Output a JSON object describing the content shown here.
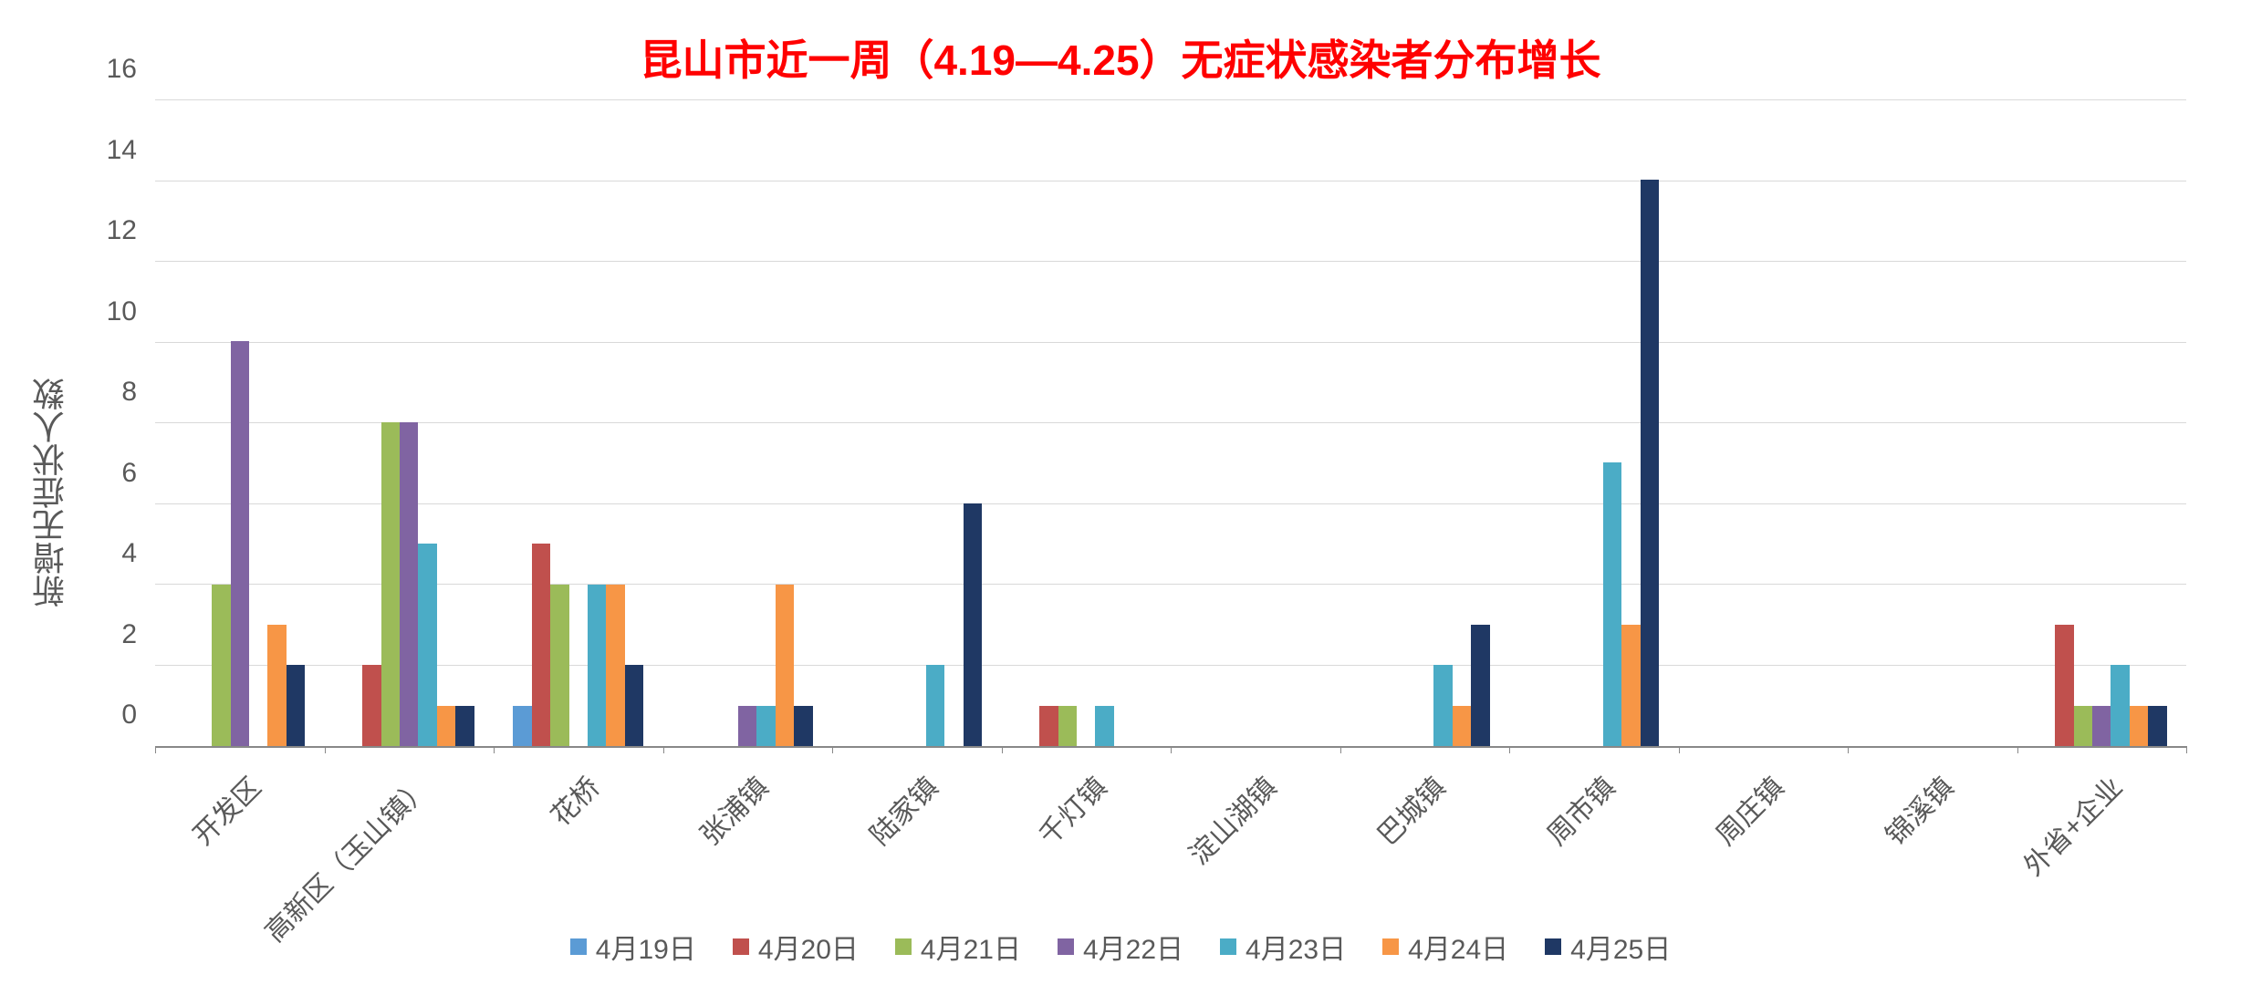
{
  "chart": {
    "type": "grouped-bar",
    "title": "昆山市近一周（4.19—4.25）无症状感染者分布增长",
    "title_color": "#ff0000",
    "title_fontsize": 46,
    "title_fontweight": "bold",
    "ylabel": "新增无症状人数",
    "label_fontsize": 36,
    "label_color": "#595959",
    "background_color": "#ffffff",
    "grid_color": "#d9d9d9",
    "axis_color": "#888888",
    "tick_label_color": "#595959",
    "tick_fontsize": 30,
    "ylim": [
      0,
      16
    ],
    "ytick_step": 2,
    "yticks": [
      0,
      2,
      4,
      6,
      8,
      10,
      12,
      14,
      16
    ],
    "categories": [
      "开发区",
      "高新区（玉山镇）",
      "花桥",
      "张浦镇",
      "陆家镇",
      "千灯镇",
      "淀山湖镇",
      "巴城镇",
      "周市镇",
      "周庄镇",
      "锦溪镇",
      "外省+企业"
    ],
    "x_label_rotation": -45,
    "series": [
      {
        "name": "4月19日",
        "color": "#5b9bd5",
        "values": [
          0,
          0,
          1,
          0,
          0,
          0,
          0,
          0,
          0,
          0,
          0,
          0
        ]
      },
      {
        "name": "4月20日",
        "color": "#c0504d",
        "values": [
          0,
          2,
          5,
          0,
          0,
          1,
          0,
          0,
          0,
          0,
          0,
          3
        ]
      },
      {
        "name": "4月21日",
        "color": "#9bbb59",
        "values": [
          4,
          8,
          4,
          0,
          0,
          1,
          0,
          0,
          0,
          0,
          0,
          1
        ]
      },
      {
        "name": "4月22日",
        "color": "#8064a2",
        "values": [
          10,
          8,
          0,
          1,
          0,
          0,
          0,
          0,
          0,
          0,
          0,
          1
        ]
      },
      {
        "name": "4月23日",
        "color": "#4bacc6",
        "values": [
          0,
          5,
          4,
          1,
          2,
          1,
          0,
          2,
          7,
          0,
          0,
          2
        ]
      },
      {
        "name": "4月24日",
        "color": "#f79646",
        "values": [
          3,
          1,
          4,
          4,
          0,
          0,
          0,
          1,
          3,
          0,
          0,
          1
        ]
      },
      {
        "name": "4月25日",
        "color": "#1f3864",
        "values": [
          2,
          1,
          2,
          1,
          6,
          0,
          0,
          3,
          14,
          0,
          0,
          1
        ]
      }
    ],
    "bar_width_ratio": 0.11,
    "group_gap_ratio": 0.02,
    "legend_position": "bottom",
    "legend_fontsize": 30
  }
}
